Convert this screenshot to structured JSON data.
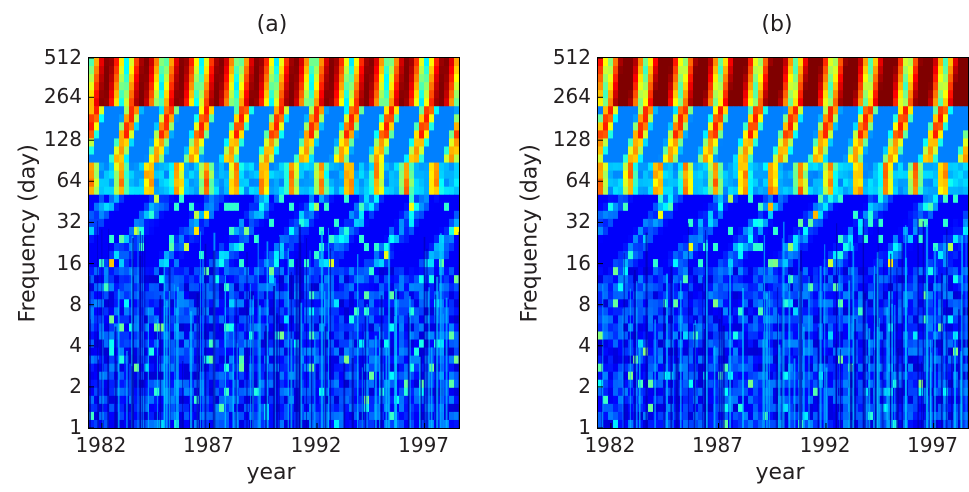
{
  "chart_data": [
    {
      "type": "heatmap",
      "title": "(a)",
      "xlabel": "year",
      "ylabel": "Frequency (day)",
      "x_ticks": [
        "1982",
        "1987",
        "1992",
        "1997"
      ],
      "x_tick_values": [
        1982,
        1987,
        1992,
        1997
      ],
      "xlim": [
        1981.4,
        1998.6
      ],
      "y_ticks": [
        "1",
        "2",
        "4",
        "8",
        "16",
        "32",
        "64",
        "128",
        "264",
        "512"
      ],
      "y_tick_values": [
        1,
        2,
        4,
        8,
        16,
        32,
        64,
        128,
        264,
        512
      ],
      "ylim": [
        1,
        512
      ],
      "y_scale": "log2",
      "colormap": "jet",
      "colors": [
        "#00008f",
        "#0000ff",
        "#00ffff",
        "#ffff00",
        "#ff0000",
        "#800000"
      ]
    },
    {
      "type": "heatmap",
      "title": "(b)",
      "xlabel": "year",
      "ylabel": "Frequency (day)",
      "x_ticks": [
        "1982",
        "1987",
        "1992",
        "1997"
      ],
      "x_tick_values": [
        1982,
        1987,
        1992,
        1997
      ],
      "xlim": [
        1981.4,
        1998.6
      ],
      "y_ticks": [
        "1",
        "2",
        "4",
        "8",
        "16",
        "32",
        "64",
        "128",
        "264",
        "512"
      ],
      "y_tick_values": [
        1,
        2,
        4,
        8,
        16,
        32,
        64,
        128,
        264,
        512
      ],
      "ylim": [
        1,
        512
      ],
      "y_scale": "log2",
      "colormap": "jet",
      "colors": [
        "#00008f",
        "#0000ff",
        "#00ffff",
        "#ffff00",
        "#ff0000",
        "#800000"
      ]
    }
  ]
}
